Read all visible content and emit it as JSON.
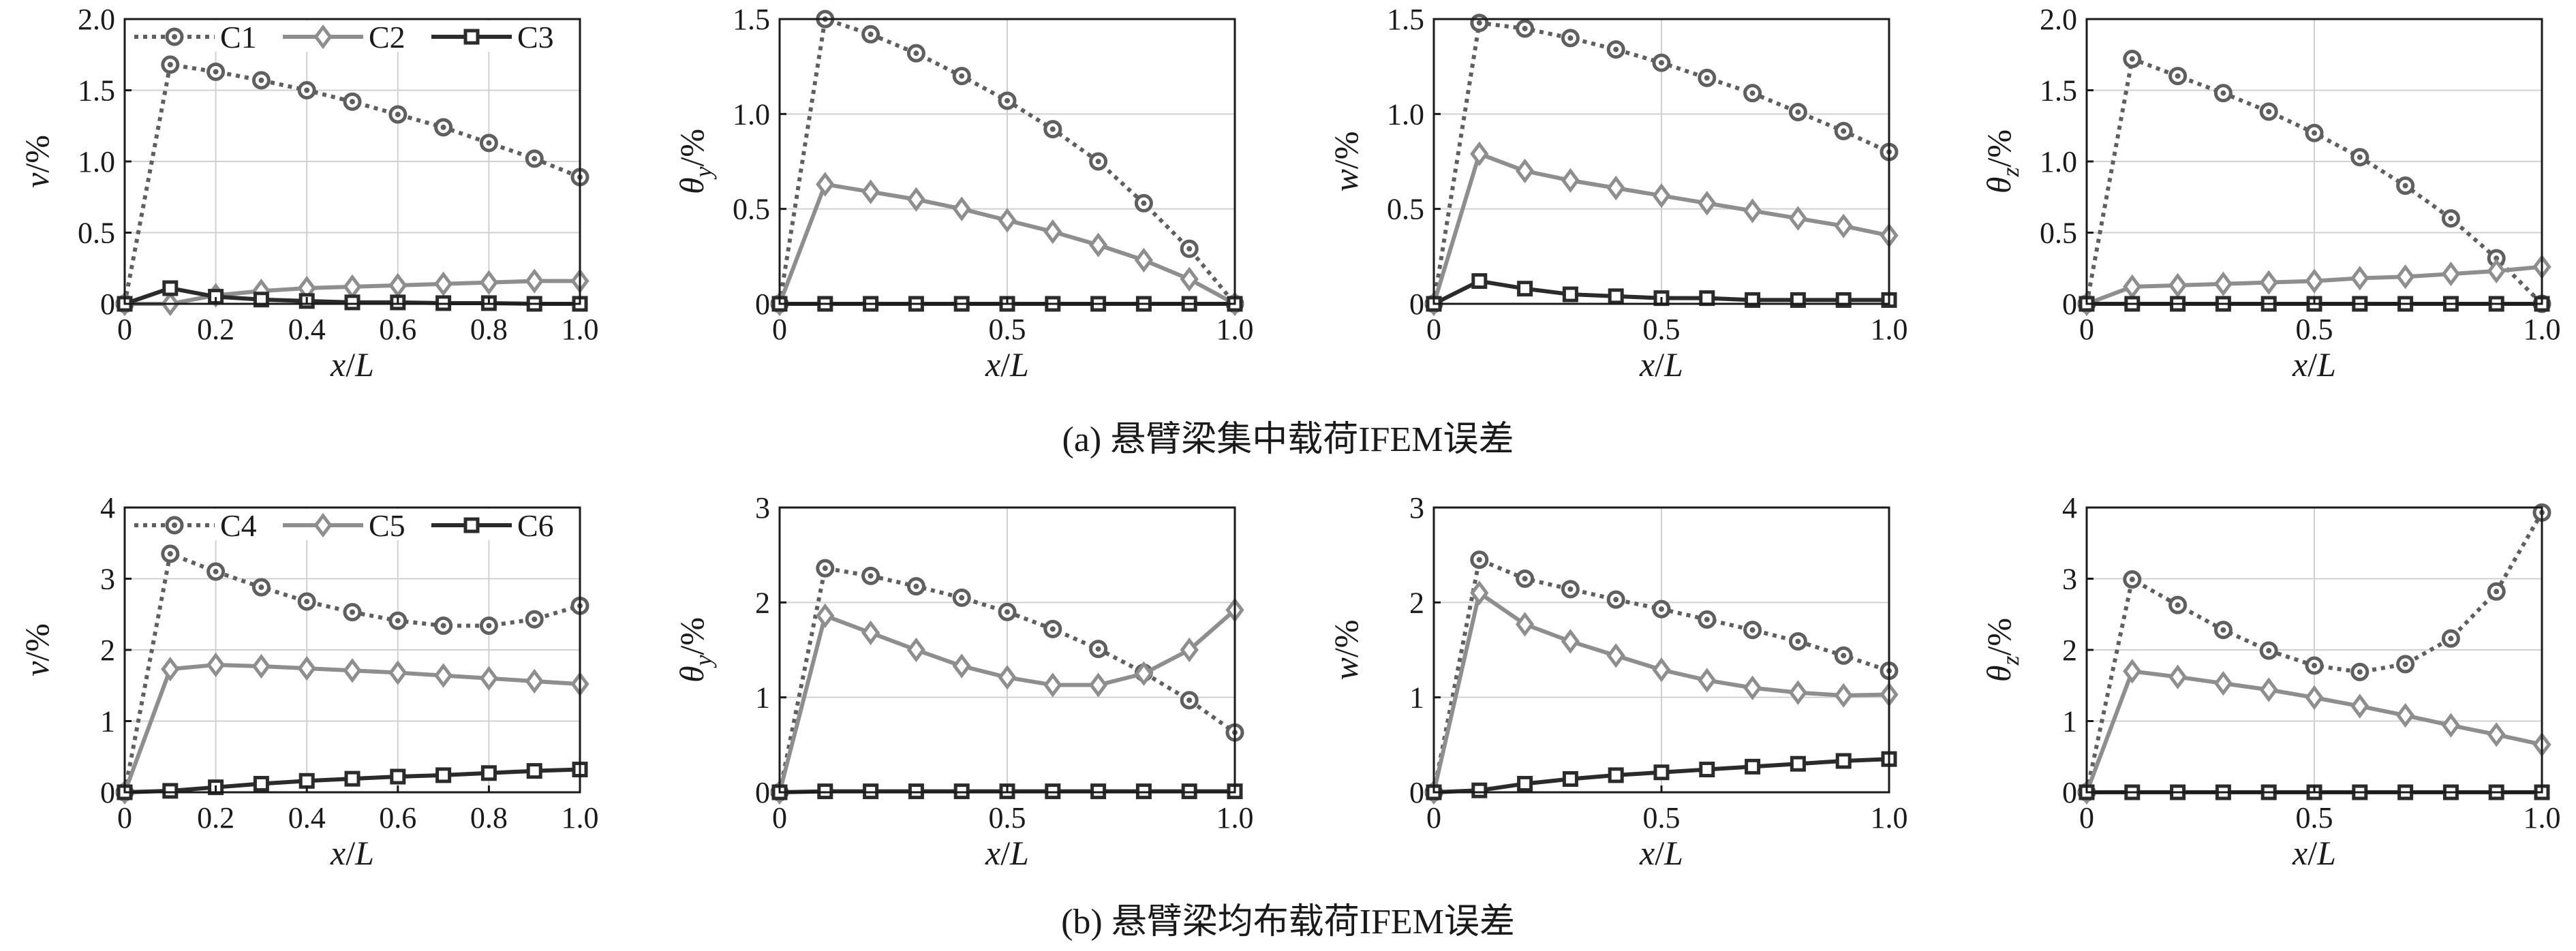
{
  "captions": {
    "a": "(a) 悬臂梁集中载荷IFEM误差",
    "b": "(b) 悬臂梁均布载荷IFEM误差"
  },
  "series_styles": {
    "circle": {
      "color": "#5f5f5f",
      "marker": "circle"
    },
    "diamond": {
      "color": "#8e8e8e",
      "marker": "diamond"
    },
    "square": {
      "color": "#2b2b2b",
      "marker": "square"
    }
  },
  "chart_data": [
    {
      "type": "line",
      "row": 0,
      "col": 0,
      "xlabel": "x/L",
      "ylabel": "v/%",
      "xlim": [
        0,
        1.0
      ],
      "ylim": [
        0,
        2.0
      ],
      "xticks": [
        "0",
        "0.2",
        "0.4",
        "0.6",
        "0.8",
        "1.0"
      ],
      "xtick_values": [
        0,
        0.2,
        0.4,
        0.6,
        0.8,
        1.0
      ],
      "yticks": [
        "0",
        "0.5",
        "1.0",
        "1.5",
        "2.0"
      ],
      "ytick_values": [
        0,
        0.5,
        1.0,
        1.5,
        2.0
      ],
      "grid": true,
      "legend": "top",
      "x": [
        0,
        0.1,
        0.2,
        0.3,
        0.4,
        0.5,
        0.6,
        0.7,
        0.8,
        0.9,
        1.0
      ],
      "series": [
        {
          "name": "C1",
          "style": "circle",
          "values": [
            0,
            1.68,
            1.63,
            1.57,
            1.5,
            1.42,
            1.33,
            1.24,
            1.13,
            1.02,
            0.89
          ]
        },
        {
          "name": "C2",
          "style": "diamond",
          "values": [
            0,
            0,
            0.06,
            0.09,
            0.11,
            0.12,
            0.13,
            0.14,
            0.15,
            0.16,
            0.16
          ]
        },
        {
          "name": "C3",
          "style": "square",
          "values": [
            0,
            0.11,
            0.05,
            0.03,
            0.02,
            0.01,
            0.01,
            0.005,
            0.005,
            0,
            0
          ]
        }
      ]
    },
    {
      "type": "line",
      "row": 0,
      "col": 1,
      "xlabel": "x/L",
      "ylabel": "θy/%",
      "xlim": [
        0,
        1.0
      ],
      "ylim": [
        0,
        1.5
      ],
      "xticks": [
        "0",
        "0.5",
        "1.0"
      ],
      "xtick_values": [
        0,
        0.5,
        1.0
      ],
      "yticks": [
        "0",
        "0.5",
        "1.0",
        "1.5"
      ],
      "ytick_values": [
        0,
        0.5,
        1.0,
        1.5
      ],
      "grid": true,
      "x": [
        0,
        0.1,
        0.2,
        0.3,
        0.4,
        0.5,
        0.6,
        0.7,
        0.8,
        0.9,
        1.0
      ],
      "series": [
        {
          "name": "C1",
          "style": "circle",
          "values": [
            0,
            1.5,
            1.42,
            1.32,
            1.2,
            1.07,
            0.92,
            0.75,
            0.53,
            0.29,
            0
          ]
        },
        {
          "name": "C2",
          "style": "diamond",
          "values": [
            0,
            0.63,
            0.59,
            0.55,
            0.5,
            0.44,
            0.38,
            0.31,
            0.23,
            0.13,
            0
          ]
        },
        {
          "name": "C3",
          "style": "square",
          "values": [
            0,
            0,
            0,
            0,
            0,
            0,
            0,
            0,
            0,
            0,
            0
          ]
        }
      ]
    },
    {
      "type": "line",
      "row": 0,
      "col": 2,
      "xlabel": "x/L",
      "ylabel": "w/%",
      "xlim": [
        0,
        1.0
      ],
      "ylim": [
        0,
        1.5
      ],
      "xticks": [
        "0",
        "0.5",
        "1.0"
      ],
      "xtick_values": [
        0,
        0.5,
        1.0
      ],
      "yticks": [
        "0",
        "0.5",
        "1.0",
        "1.5"
      ],
      "ytick_values": [
        0,
        0.5,
        1.0,
        1.5
      ],
      "grid": true,
      "x": [
        0,
        0.1,
        0.2,
        0.3,
        0.4,
        0.5,
        0.6,
        0.7,
        0.8,
        0.9,
        1.0
      ],
      "series": [
        {
          "name": "C1",
          "style": "circle",
          "values": [
            0,
            1.48,
            1.45,
            1.4,
            1.34,
            1.27,
            1.19,
            1.11,
            1.01,
            0.91,
            0.8
          ]
        },
        {
          "name": "C2",
          "style": "diamond",
          "values": [
            0,
            0.79,
            0.7,
            0.65,
            0.61,
            0.57,
            0.53,
            0.49,
            0.45,
            0.41,
            0.36
          ]
        },
        {
          "name": "C3",
          "style": "square",
          "values": [
            0,
            0.12,
            0.08,
            0.05,
            0.04,
            0.03,
            0.03,
            0.02,
            0.02,
            0.02,
            0.02
          ]
        }
      ]
    },
    {
      "type": "line",
      "row": 0,
      "col": 3,
      "xlabel": "x/L",
      "ylabel": "θz/%",
      "xlim": [
        0,
        1.0
      ],
      "ylim": [
        0,
        2.0
      ],
      "xticks": [
        "0",
        "0.5",
        "1.0"
      ],
      "xtick_values": [
        0,
        0.5,
        1.0
      ],
      "yticks": [
        "0",
        "0.5",
        "1.0",
        "1.5",
        "2.0"
      ],
      "ytick_values": [
        0,
        0.5,
        1.0,
        1.5,
        2.0
      ],
      "grid": true,
      "x": [
        0,
        0.1,
        0.2,
        0.3,
        0.4,
        0.5,
        0.6,
        0.7,
        0.8,
        0.9,
        1.0
      ],
      "series": [
        {
          "name": "C1",
          "style": "circle",
          "values": [
            0,
            1.72,
            1.6,
            1.48,
            1.35,
            1.2,
            1.03,
            0.83,
            0.6,
            0.32,
            0
          ]
        },
        {
          "name": "C2",
          "style": "diamond",
          "values": [
            0,
            0.12,
            0.13,
            0.14,
            0.15,
            0.16,
            0.18,
            0.19,
            0.21,
            0.23,
            0.26
          ]
        },
        {
          "name": "C3",
          "style": "square",
          "values": [
            0,
            0,
            0,
            0,
            0,
            0,
            0,
            0,
            0,
            0,
            0
          ]
        }
      ]
    },
    {
      "type": "line",
      "row": 1,
      "col": 0,
      "xlabel": "x/L",
      "ylabel": "v/%",
      "xlim": [
        0,
        1.0
      ],
      "ylim": [
        0,
        4
      ],
      "xticks": [
        "0",
        "0.2",
        "0.4",
        "0.6",
        "0.8",
        "1.0"
      ],
      "xtick_values": [
        0,
        0.2,
        0.4,
        0.6,
        0.8,
        1.0
      ],
      "yticks": [
        "0",
        "1",
        "2",
        "3",
        "4"
      ],
      "ytick_values": [
        0,
        1,
        2,
        3,
        4
      ],
      "grid": true,
      "legend": "top",
      "x": [
        0,
        0.1,
        0.2,
        0.3,
        0.4,
        0.5,
        0.6,
        0.7,
        0.8,
        0.9,
        1.0
      ],
      "series": [
        {
          "name": "C4",
          "style": "circle",
          "values": [
            0,
            3.35,
            3.1,
            2.88,
            2.68,
            2.53,
            2.41,
            2.34,
            2.34,
            2.43,
            2.62
          ]
        },
        {
          "name": "C5",
          "style": "diamond",
          "values": [
            0,
            1.73,
            1.79,
            1.77,
            1.74,
            1.71,
            1.68,
            1.64,
            1.6,
            1.56,
            1.52
          ]
        },
        {
          "name": "C6",
          "style": "square",
          "values": [
            0,
            0.02,
            0.07,
            0.12,
            0.16,
            0.19,
            0.22,
            0.24,
            0.27,
            0.3,
            0.32
          ]
        }
      ]
    },
    {
      "type": "line",
      "row": 1,
      "col": 1,
      "xlabel": "x/L",
      "ylabel": "θy/%",
      "xlim": [
        0,
        1.0
      ],
      "ylim": [
        0,
        3
      ],
      "xticks": [
        "0",
        "0.5",
        "1.0"
      ],
      "xtick_values": [
        0,
        0.5,
        1.0
      ],
      "yticks": [
        "0",
        "1",
        "2",
        "3"
      ],
      "ytick_values": [
        0,
        1,
        2,
        3
      ],
      "grid": true,
      "x": [
        0,
        0.1,
        0.2,
        0.3,
        0.4,
        0.5,
        0.6,
        0.7,
        0.8,
        0.9,
        1.0
      ],
      "series": [
        {
          "name": "C4",
          "style": "circle",
          "values": [
            0,
            2.36,
            2.28,
            2.17,
            2.05,
            1.9,
            1.72,
            1.51,
            1.26,
            0.97,
            0.63
          ]
        },
        {
          "name": "C5",
          "style": "diamond",
          "values": [
            0,
            1.86,
            1.68,
            1.5,
            1.33,
            1.21,
            1.13,
            1.13,
            1.25,
            1.5,
            1.92
          ]
        },
        {
          "name": "C6",
          "style": "square",
          "values": [
            0,
            0.01,
            0.01,
            0.01,
            0.01,
            0.01,
            0.01,
            0.01,
            0.01,
            0.01,
            0.01
          ]
        }
      ]
    },
    {
      "type": "line",
      "row": 1,
      "col": 2,
      "xlabel": "x/L",
      "ylabel": "w/%",
      "xlim": [
        0,
        1.0
      ],
      "ylim": [
        0,
        3
      ],
      "xticks": [
        "0",
        "0.5",
        "1.0"
      ],
      "xtick_values": [
        0,
        0.5,
        1.0
      ],
      "yticks": [
        "0",
        "1",
        "2",
        "3"
      ],
      "ytick_values": [
        0,
        1,
        2,
        3
      ],
      "grid": true,
      "x": [
        0,
        0.1,
        0.2,
        0.3,
        0.4,
        0.5,
        0.6,
        0.7,
        0.8,
        0.9,
        1.0
      ],
      "series": [
        {
          "name": "C4",
          "style": "circle",
          "values": [
            0,
            2.45,
            2.25,
            2.14,
            2.03,
            1.93,
            1.82,
            1.71,
            1.59,
            1.44,
            1.28
          ]
        },
        {
          "name": "C5",
          "style": "diamond",
          "values": [
            0,
            2.1,
            1.77,
            1.59,
            1.44,
            1.29,
            1.18,
            1.1,
            1.05,
            1.02,
            1.03
          ]
        },
        {
          "name": "C6",
          "style": "square",
          "values": [
            0,
            0.02,
            0.09,
            0.14,
            0.18,
            0.21,
            0.24,
            0.27,
            0.3,
            0.33,
            0.35
          ]
        }
      ]
    },
    {
      "type": "line",
      "row": 1,
      "col": 3,
      "xlabel": "x/L",
      "ylabel": "θz/%",
      "xlim": [
        0,
        1.0
      ],
      "ylim": [
        0,
        4
      ],
      "xticks": [
        "0",
        "0.5",
        "1.0"
      ],
      "xtick_values": [
        0,
        0.5,
        1.0
      ],
      "yticks": [
        "0",
        "1",
        "2",
        "3",
        "4"
      ],
      "ytick_values": [
        0,
        1,
        2,
        3,
        4
      ],
      "grid": true,
      "x": [
        0,
        0.1,
        0.2,
        0.3,
        0.4,
        0.5,
        0.6,
        0.7,
        0.8,
        0.9,
        1.0
      ],
      "series": [
        {
          "name": "C4",
          "style": "circle",
          "values": [
            0,
            2.99,
            2.63,
            2.28,
            1.99,
            1.78,
            1.69,
            1.8,
            2.16,
            2.82,
            3.93
          ]
        },
        {
          "name": "C5",
          "style": "diamond",
          "values": [
            0,
            1.7,
            1.62,
            1.53,
            1.44,
            1.33,
            1.21,
            1.08,
            0.94,
            0.81,
            0.67
          ]
        },
        {
          "name": "C6",
          "style": "square",
          "values": [
            0,
            0,
            0,
            0,
            0,
            0,
            0,
            0,
            0,
            0,
            0
          ]
        }
      ]
    }
  ]
}
